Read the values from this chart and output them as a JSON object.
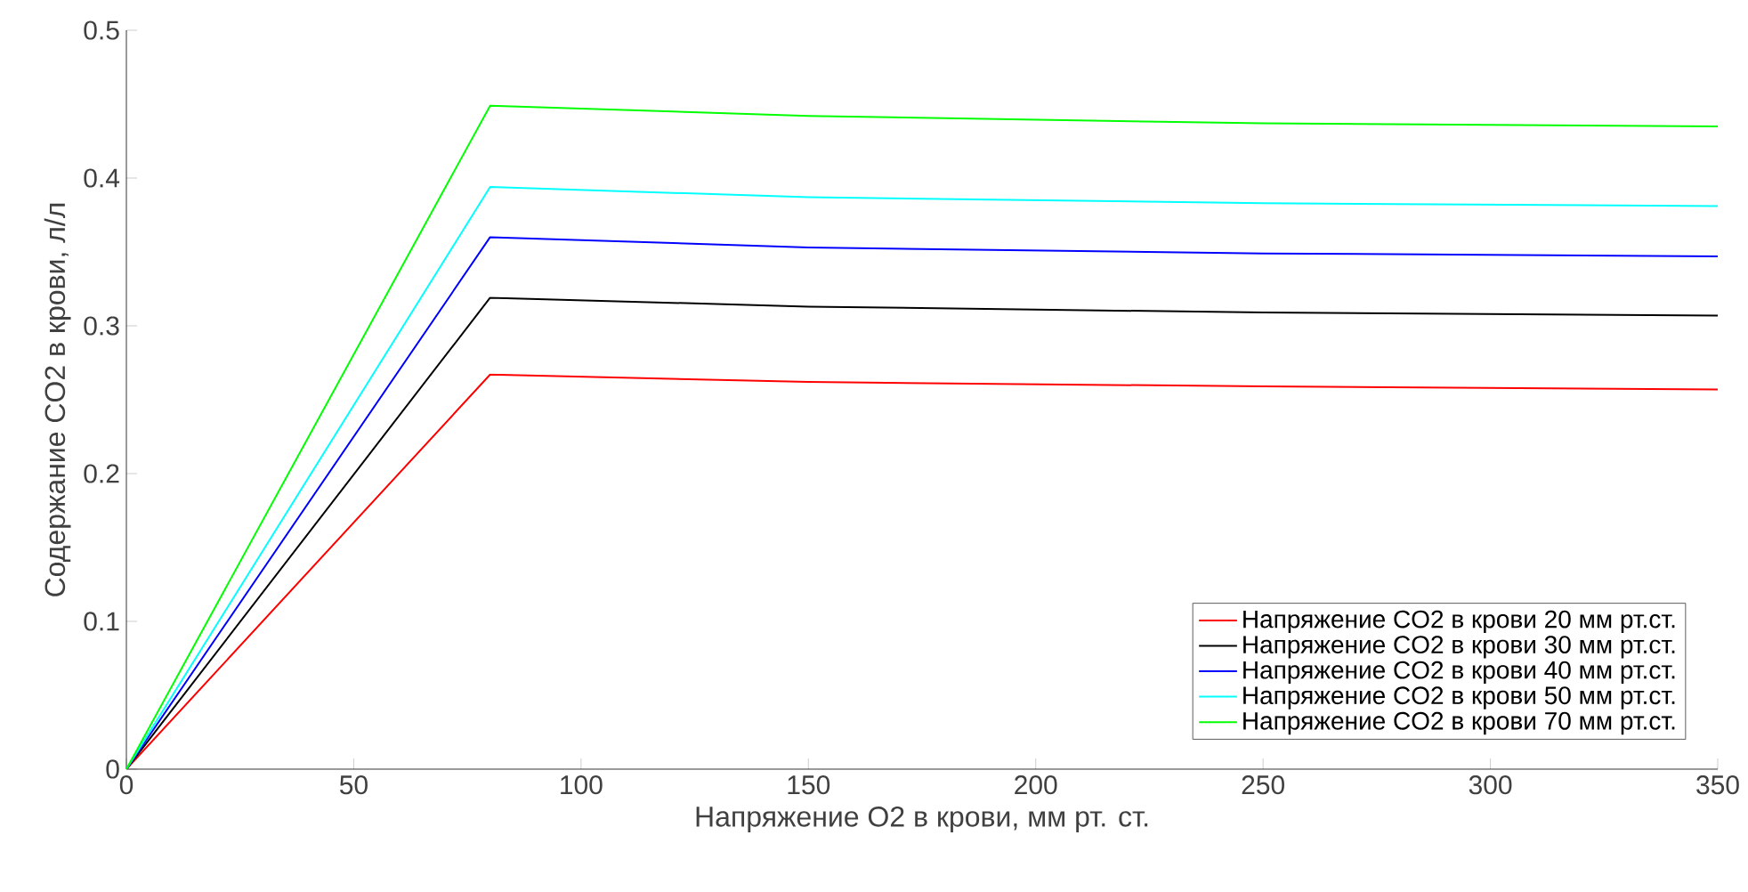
{
  "chart_data": {
    "type": "line",
    "xlabel": "Напряжение O2 в крови, мм рт. ст.",
    "ylabel": "Содержание CO2 в крови, л/л",
    "x": [
      0,
      80,
      150,
      250,
      350
    ],
    "series": [
      {
        "name": "Напряжение CO2 в крови 20 мм рт.ст.",
        "color": "#ff0000",
        "values": [
          0,
          0.267,
          0.262,
          0.259,
          0.257
        ]
      },
      {
        "name": "Напряжение CO2 в крови 30 мм рт.ст.",
        "color": "#000000",
        "values": [
          0,
          0.319,
          0.313,
          0.309,
          0.307
        ]
      },
      {
        "name": "Напряжение CO2 в крови 40 мм рт.ст.",
        "color": "#0000ff",
        "values": [
          0,
          0.36,
          0.353,
          0.349,
          0.347
        ]
      },
      {
        "name": "Напряжение CO2 в крови 50 мм рт.ст.",
        "color": "#00ffff",
        "values": [
          0,
          0.394,
          0.387,
          0.383,
          0.381
        ]
      },
      {
        "name": "Напряжение CO2 в крови 70 мм рт.ст.",
        "color": "#00ff00",
        "values": [
          0,
          0.449,
          0.442,
          0.437,
          0.435
        ]
      }
    ],
    "xlim": [
      0,
      350
    ],
    "ylim": [
      0,
      0.5
    ],
    "xticks": [
      0,
      50,
      100,
      150,
      200,
      250,
      300,
      350
    ],
    "yticks": [
      0,
      0.1,
      0.2,
      0.3,
      0.4,
      0.5
    ],
    "legend": "bottom right",
    "grid": false,
    "marker": "none",
    "line_style": "solid"
  }
}
